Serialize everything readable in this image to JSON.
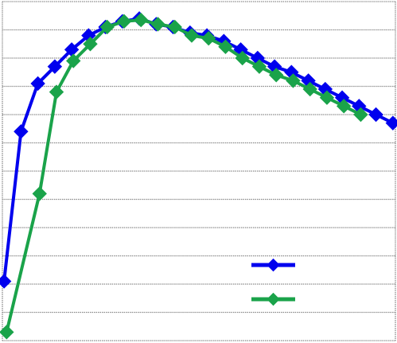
{
  "chart_data": {
    "type": "line",
    "title": "",
    "xlabel": "",
    "ylabel": "",
    "xlim": [
      0,
      46.5
    ],
    "ylim": [
      0,
      12
    ],
    "grid": true,
    "legend_position": "bottom-right",
    "series": [
      {
        "color": "#0000ee",
        "marker": "diamond",
        "points": [
          [
            0.2,
            2.1
          ],
          [
            2.2,
            7.4
          ],
          [
            4.2,
            9.1
          ],
          [
            6.2,
            9.7
          ],
          [
            8.2,
            10.3
          ],
          [
            10.2,
            10.8
          ],
          [
            12.2,
            11.1
          ],
          [
            14.2,
            11.3
          ],
          [
            16.2,
            11.4
          ],
          [
            18.2,
            11.2
          ],
          [
            20.2,
            11.1
          ],
          [
            22.2,
            10.9
          ],
          [
            24.2,
            10.8
          ],
          [
            26.2,
            10.6
          ],
          [
            28.2,
            10.3
          ],
          [
            30.2,
            10.0
          ],
          [
            32.2,
            9.7
          ],
          [
            34.2,
            9.5
          ],
          [
            36.2,
            9.2
          ],
          [
            38.2,
            8.9
          ],
          [
            40.2,
            8.6
          ],
          [
            42.2,
            8.3
          ],
          [
            44.2,
            8.0
          ],
          [
            46.2,
            7.7
          ]
        ]
      },
      {
        "color": "#1aa34a",
        "marker": "diamond",
        "points": [
          [
            0.5,
            0.3
          ],
          [
            4.4,
            5.2
          ],
          [
            6.4,
            8.8
          ],
          [
            8.4,
            9.9
          ],
          [
            10.4,
            10.5
          ],
          [
            12.4,
            11.1
          ],
          [
            14.4,
            11.3
          ],
          [
            16.4,
            11.35
          ],
          [
            18.4,
            11.2
          ],
          [
            20.4,
            11.1
          ],
          [
            22.4,
            10.8
          ],
          [
            24.4,
            10.7
          ],
          [
            26.4,
            10.4
          ],
          [
            28.4,
            10.0
          ],
          [
            30.4,
            9.7
          ],
          [
            32.4,
            9.4
          ],
          [
            34.4,
            9.2
          ],
          [
            36.4,
            8.9
          ],
          [
            38.4,
            8.6
          ],
          [
            40.4,
            8.3
          ],
          [
            42.4,
            8.0
          ]
        ]
      }
    ]
  }
}
